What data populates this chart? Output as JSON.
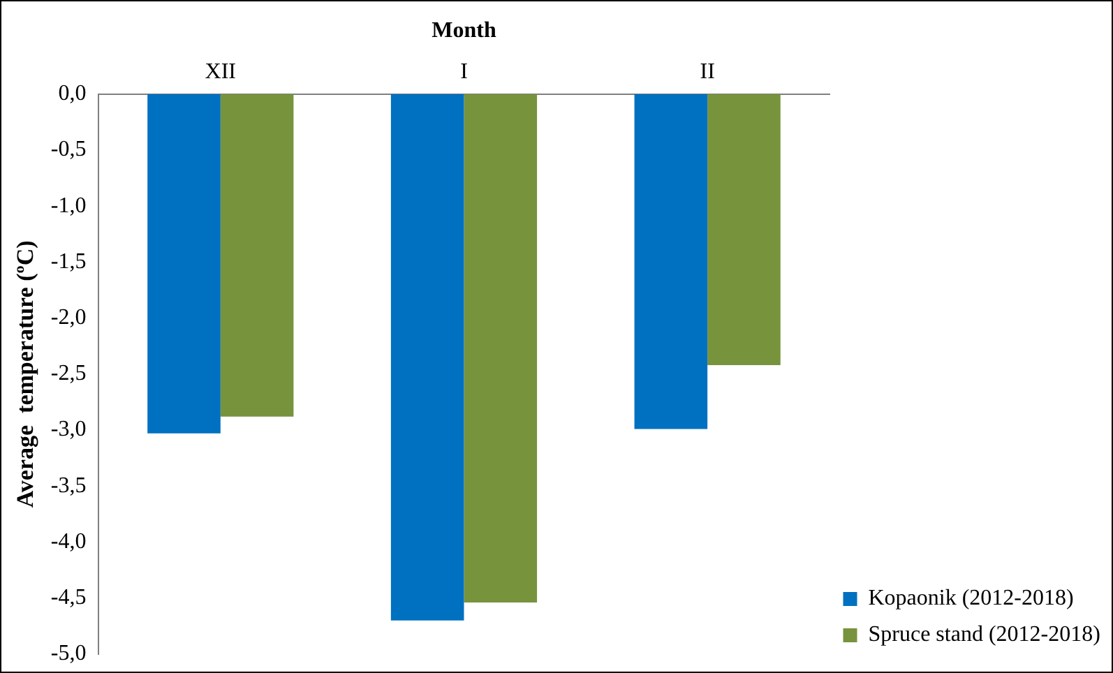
{
  "chart_data": {
    "type": "bar",
    "xlabel": "Month",
    "ylabel": "Average  temperature (ºC)",
    "categories": [
      "XII",
      "I",
      "II"
    ],
    "series": [
      {
        "name": "Kopaonik (2012-2018)",
        "color": "#0070c0",
        "values": [
          -3.03,
          -4.7,
          -2.99
        ]
      },
      {
        "name": "Spruce stand (2012-2018)",
        "color": "#77933c",
        "values": [
          -2.88,
          -4.54,
          -2.42
        ]
      }
    ],
    "ylim": [
      -5,
      0
    ],
    "yticks": [
      {
        "value": 0,
        "label": "0,0"
      },
      {
        "value": -0.5,
        "label": "-0,5"
      },
      {
        "value": -1,
        "label": "-1,0"
      },
      {
        "value": -1.5,
        "label": "-1,5"
      },
      {
        "value": -2,
        "label": "-2,0"
      },
      {
        "value": -2.5,
        "label": "-2,5"
      },
      {
        "value": -3,
        "label": "-3,0"
      },
      {
        "value": -3.5,
        "label": "-3,5"
      },
      {
        "value": -4,
        "label": "-4,0"
      },
      {
        "value": -4.5,
        "label": "-4,5"
      },
      {
        "value": -5,
        "label": "-5,0"
      }
    ],
    "grid": false,
    "legend": "bottom right"
  }
}
